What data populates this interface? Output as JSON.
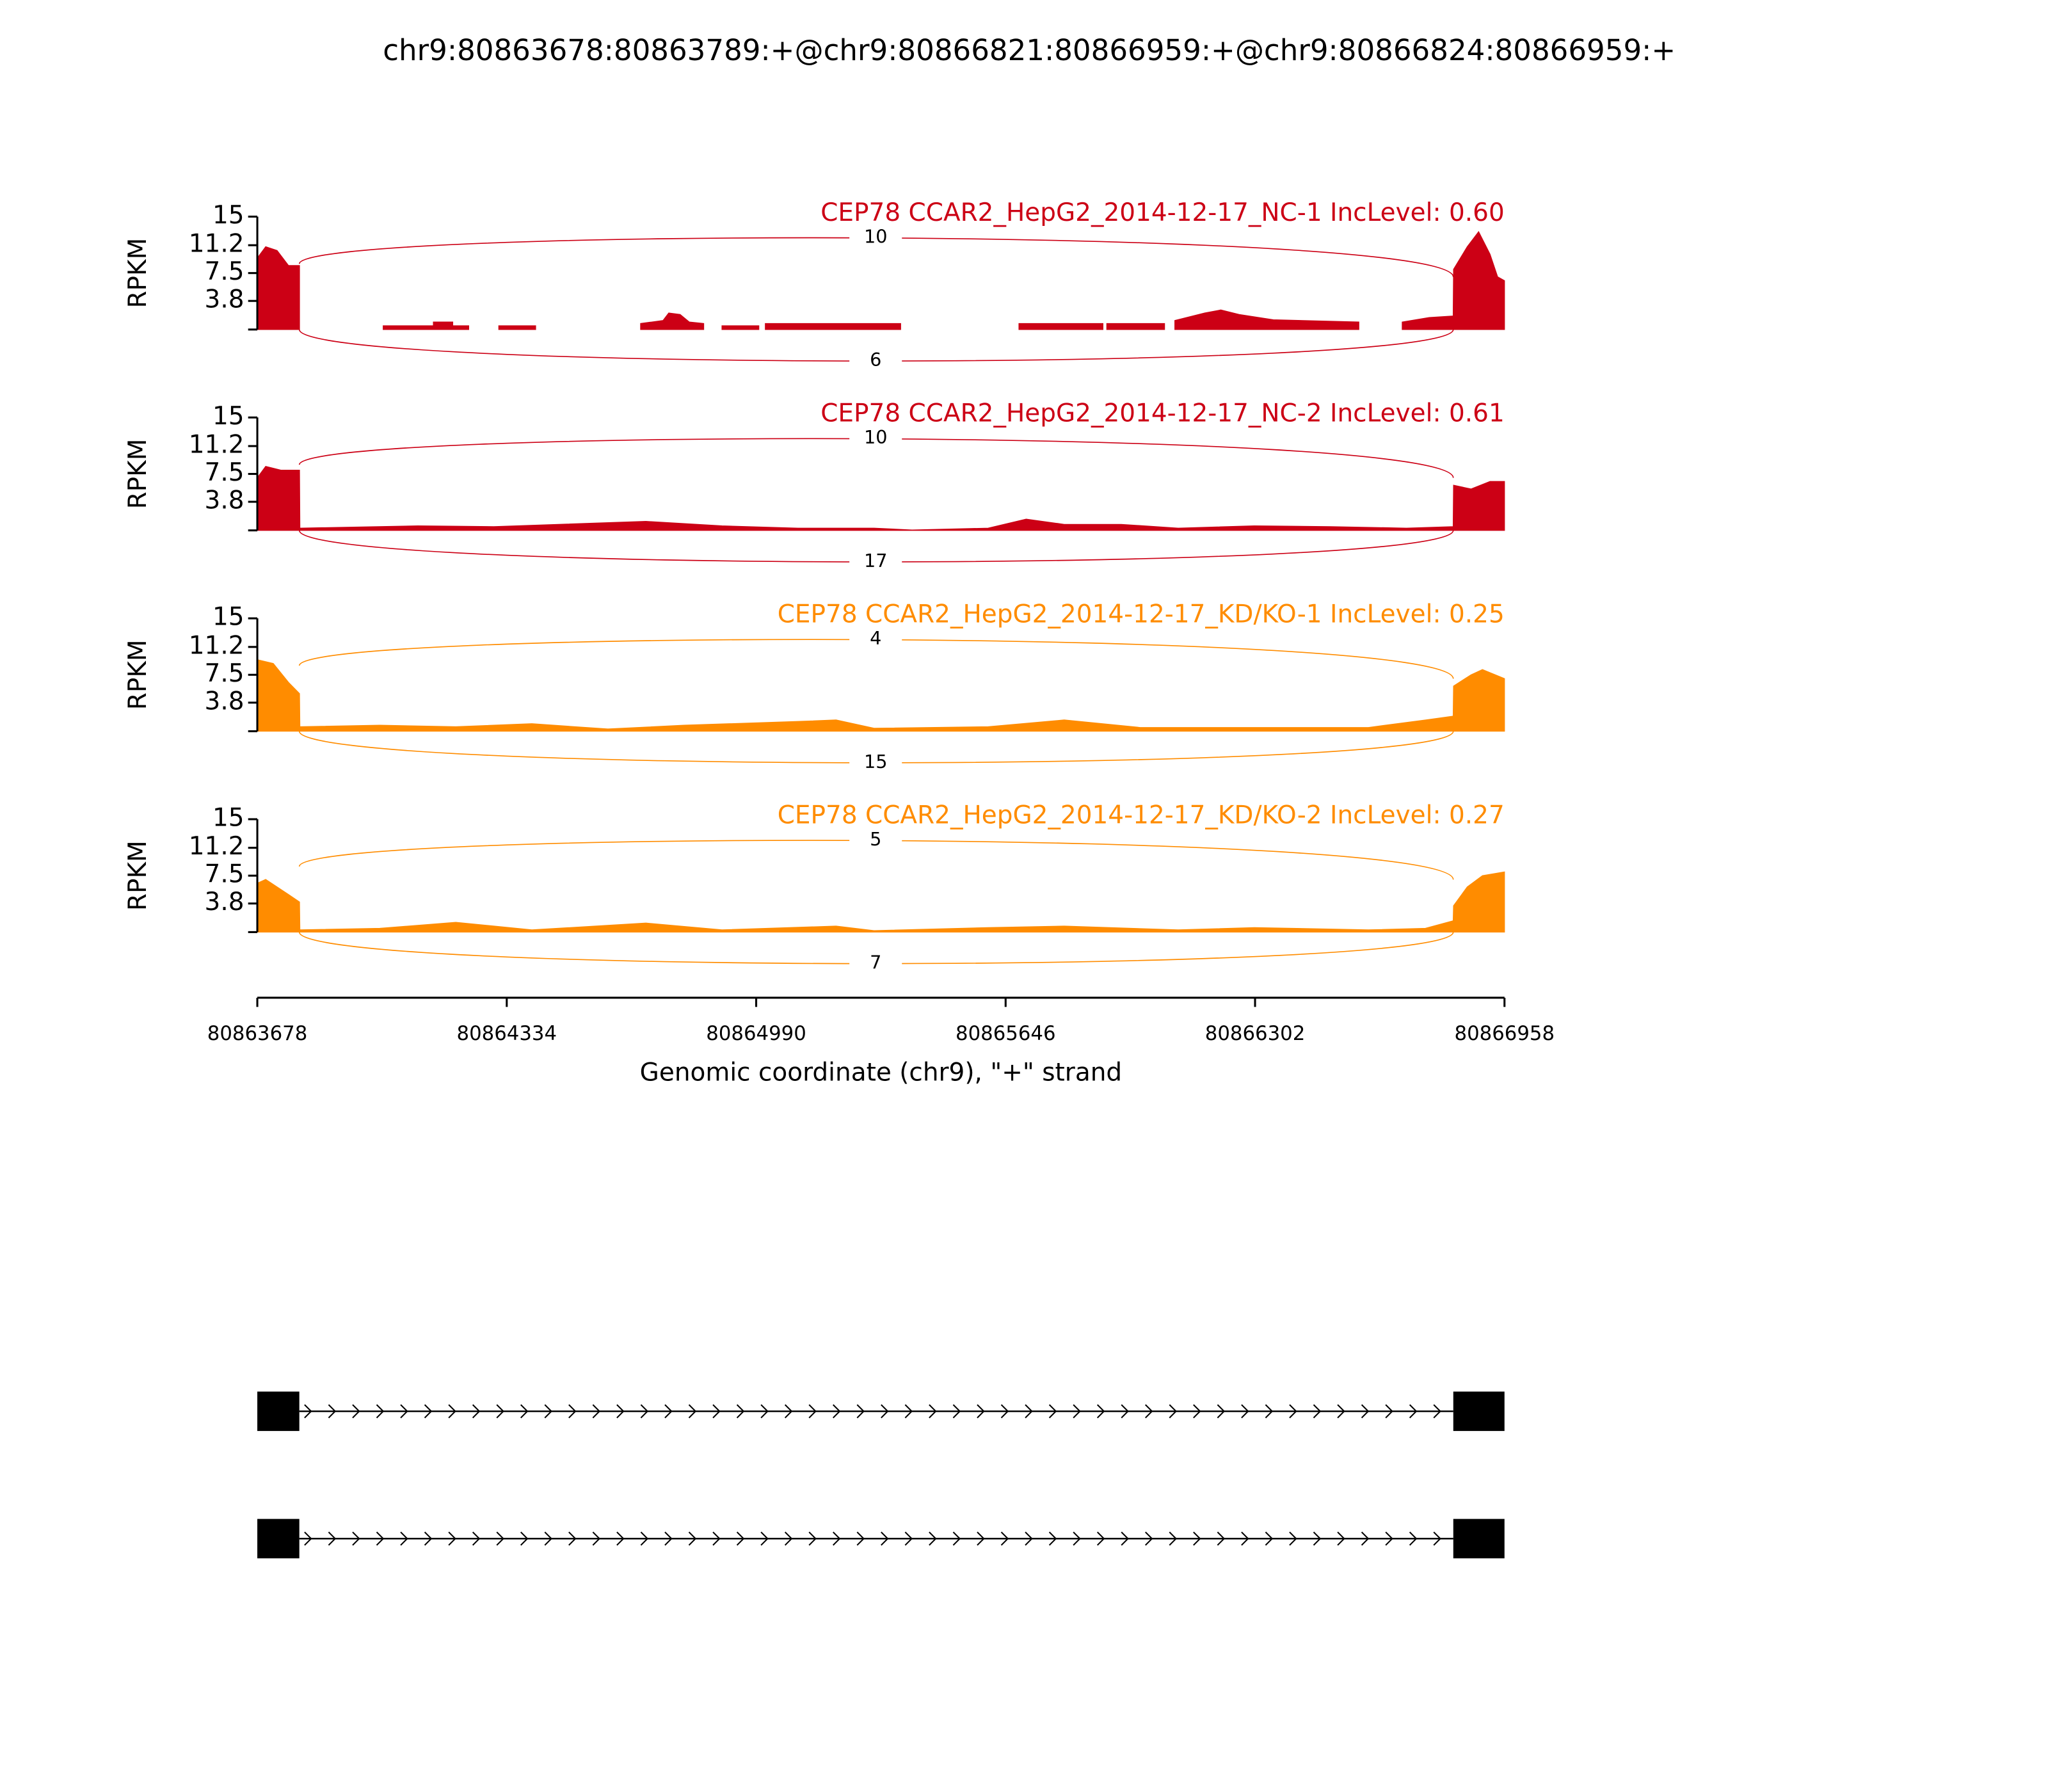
{
  "title": "chr9:80863678:80863789:+@chr9:80866821:80866959:+@chr9:80866824:80866959:+",
  "chart_data": [
    {
      "type": "area",
      "title": "CEP78 CCAR2_HepG2_2014-12-17_NC-1 IncLevel: 0.60",
      "ylabel": "RPKM",
      "color": "#cc0015",
      "xlim": [
        80863678,
        80866958
      ],
      "ylim": [
        0,
        15
      ],
      "yticks": [
        3.8,
        7.5,
        11.2,
        15
      ],
      "junctions": [
        10,
        6
      ],
      "x": [
        80863678,
        80863700,
        80863730,
        80863760,
        80863789,
        80863900,
        80864009,
        80864141,
        80864141,
        80864192,
        80864192,
        80864234,
        80864260,
        80864313,
        80864410,
        80864450,
        80864686,
        80864745,
        80864760,
        80864790,
        80864814,
        80864852,
        80864870,
        80864900,
        80864997,
        80865005,
        80865014,
        80865370,
        80865500,
        80865681,
        80865902,
        80865907,
        80865912,
        80866064,
        80866077,
        80866091,
        80866170,
        80866212,
        80866260,
        80866350,
        80866575,
        80866630,
        80866689,
        80866760,
        80866823,
        80866824,
        80866860,
        80866890,
        80866920,
        80866940,
        80866958
      ],
      "values": [
        9.5,
        11,
        10.5,
        8.5,
        8.5,
        null,
        0.5,
        0.5,
        1,
        1,
        0.5,
        0.5,
        null,
        0.5,
        0.5,
        null,
        0.8,
        1.2,
        2.2,
        2,
        1,
        0.8,
        null,
        0.5,
        0.5,
        null,
        0.8,
        0.8,
        null,
        0.8,
        0.8,
        null,
        0.8,
        0.8,
        null,
        1.2,
        2.2,
        2.6,
        2,
        1.3,
        1,
        null,
        1,
        1.6,
        1.8,
        8,
        11,
        13,
        10,
        7,
        6.5
      ]
    },
    {
      "type": "area",
      "title": "CEP78 CCAR2_HepG2_2014-12-17_NC-2 IncLevel: 0.61",
      "ylabel": "RPKM",
      "color": "#cc0015",
      "xlim": [
        80863678,
        80866958
      ],
      "ylim": [
        0,
        15
      ],
      "yticks": [
        3.8,
        7.5,
        11.2,
        15
      ],
      "junctions": [
        10,
        17
      ],
      "x": [
        80863678,
        80863700,
        80863740,
        80863789,
        80863790,
        80864100,
        80864300,
        80864700,
        80864900,
        80865100,
        80865300,
        80865400,
        80865600,
        80865700,
        80865800,
        80865950,
        80866100,
        80866300,
        80866500,
        80866700,
        80866823,
        80866824,
        80866870,
        80866920,
        80866958
      ],
      "values": [
        7,
        8.5,
        8,
        8,
        0.3,
        0.6,
        0.5,
        1.2,
        0.6,
        0.3,
        0.3,
        0.05,
        0.3,
        1.5,
        0.8,
        0.8,
        0.3,
        0.6,
        0.5,
        0.3,
        0.5,
        6,
        5.5,
        6.5,
        6.5
      ]
    },
    {
      "type": "area",
      "title": "CEP78 CCAR2_HepG2_2014-12-17_KD/KO-1 IncLevel: 0.25",
      "ylabel": "RPKM",
      "color": "#ff8c00",
      "xlim": [
        80863678,
        80866958
      ],
      "ylim": [
        0,
        15
      ],
      "yticks": [
        3.8,
        7.5,
        11.2,
        15
      ],
      "junctions": [
        4,
        15
      ],
      "x": [
        80863678,
        80863720,
        80863760,
        80863789,
        80863790,
        80864000,
        80864200,
        80864400,
        80864600,
        80864800,
        80865100,
        80865200,
        80865300,
        80865600,
        80865800,
        80866000,
        80866300,
        80866600,
        80866750,
        80866823,
        80866824,
        80866870,
        80866900,
        80866958
      ],
      "values": [
        9.5,
        9,
        6.5,
        5,
        0.6,
        0.8,
        0.6,
        1,
        0.3,
        0.8,
        1.3,
        1.5,
        0.4,
        0.6,
        1.5,
        0.5,
        0.5,
        0.5,
        1.5,
        2,
        6,
        7.5,
        8.2,
        7
      ]
    },
    {
      "type": "area",
      "title": "CEP78 CCAR2_HepG2_2014-12-17_KD/KO-2 IncLevel: 0.27",
      "ylabel": "RPKM",
      "color": "#ff8c00",
      "xlim": [
        80863678,
        80866958
      ],
      "ylim": [
        0,
        15
      ],
      "yticks": [
        3.8,
        7.5,
        11.2,
        15
      ],
      "junctions": [
        5,
        7
      ],
      "x": [
        80863678,
        80863700,
        80863760,
        80863789,
        80863790,
        80864000,
        80864200,
        80864400,
        80864700,
        80864900,
        80865200,
        80865300,
        80865600,
        80865800,
        80866100,
        80866300,
        80866600,
        80866750,
        80866823,
        80866824,
        80866860,
        80866900,
        80866958
      ],
      "values": [
        6.5,
        7,
        5,
        4,
        0.3,
        0.5,
        1.3,
        0.3,
        1.2,
        0.3,
        0.8,
        0.2,
        0.6,
        0.8,
        0.3,
        0.6,
        0.3,
        0.5,
        1.5,
        3.5,
        6,
        7.5,
        8
      ],
      "xticks": [
        80863678,
        80864334,
        80864990,
        80865646,
        80866302,
        80866958
      ],
      "xlabel": "Genomic coordinate (chr9), \"+\" strand"
    }
  ]
}
